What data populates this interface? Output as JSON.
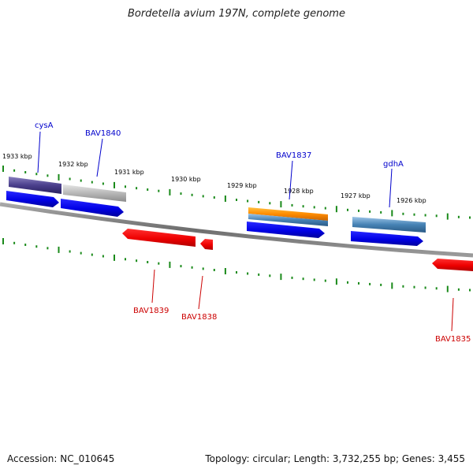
{
  "title": "Bordetella avium 197N, complete genome",
  "accession_text": "Accession: NC_010645",
  "summary_text": "Topology: circular; Length: 3,732,255 bp; Genes: 3,455",
  "colors": {
    "forward_cds": "#0000ee",
    "reverse_cds": "#ee0000",
    "backbone": "#808080",
    "tick": "#1a8a1a",
    "label_blue": "#0000cc",
    "label_red": "#cc0000"
  },
  "kbp_labels": [
    "1933 kbp",
    "1932 kbp",
    "1931 kbp",
    "1930 kbp",
    "1929 kbp",
    "1928 kbp",
    "1927 kbp",
    "1926 kbp"
  ],
  "gene_labels": {
    "cysA": "cysA",
    "BAV1840": "BAV1840",
    "BAV1837": "BAV1837",
    "gdhA": "gdhA",
    "BAV1839": "BAV1839",
    "BAV1838": "BAV1838",
    "BAV1835": "BAV1835"
  }
}
